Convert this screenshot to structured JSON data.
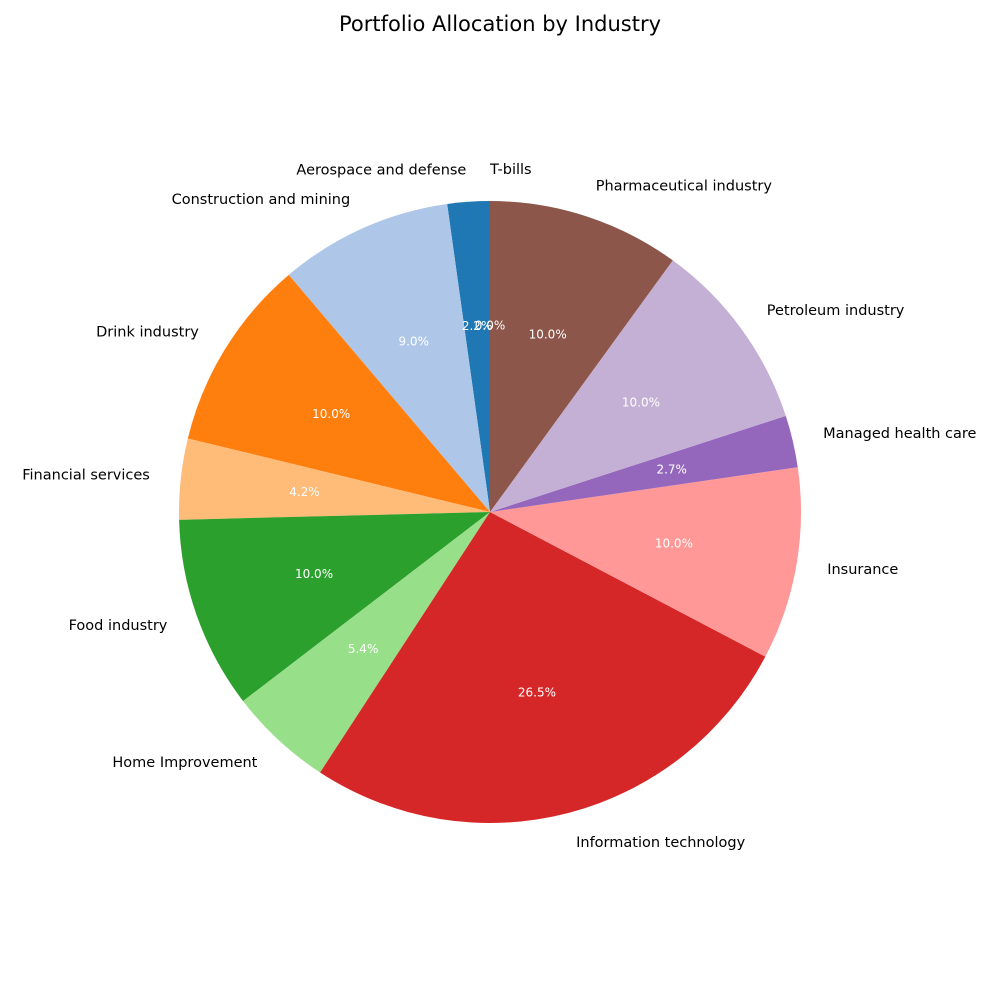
{
  "chart_data": {
    "type": "pie",
    "title": "Portfolio Allocation by Industry",
    "start_angle_deg": 90,
    "direction": "counterclockwise",
    "slices": [
      {
        "label": "T-bills",
        "value": 0.0,
        "pct_text": "0.0%",
        "color": "#1f77b4"
      },
      {
        "label": "Aerospace and defense",
        "value": 2.2,
        "pct_text": "2.2%",
        "color": "#1f77b4"
      },
      {
        "label": "Construction and mining",
        "value": 9.0,
        "pct_text": "9.0%",
        "color": "#aec7e8"
      },
      {
        "label": "Drink industry",
        "value": 10.0,
        "pct_text": "10.0%",
        "color": "#ff7f0e"
      },
      {
        "label": "Financial services",
        "value": 4.2,
        "pct_text": "4.2%",
        "color": "#ffbb78"
      },
      {
        "label": "Food industry",
        "value": 10.0,
        "pct_text": "10.0%",
        "color": "#2ca02c"
      },
      {
        "label": "Home Improvement",
        "value": 5.4,
        "pct_text": "5.4%",
        "color": "#98df8a"
      },
      {
        "label": "Information technology",
        "value": 26.5,
        "pct_text": "26.5%",
        "color": "#d62728"
      },
      {
        "label": "Insurance",
        "value": 10.0,
        "pct_text": "10.0%",
        "color": "#ff9896"
      },
      {
        "label": "Managed health care",
        "value": 2.7,
        "pct_text": "2.7%",
        "color": "#9467bd"
      },
      {
        "label": "Petroleum industry",
        "value": 10.0,
        "pct_text": "10.0%",
        "color": "#c5b0d5"
      },
      {
        "label": "Pharmaceutical industry",
        "value": 10.0,
        "pct_text": "10.0%",
        "color": "#8c564b"
      }
    ]
  }
}
